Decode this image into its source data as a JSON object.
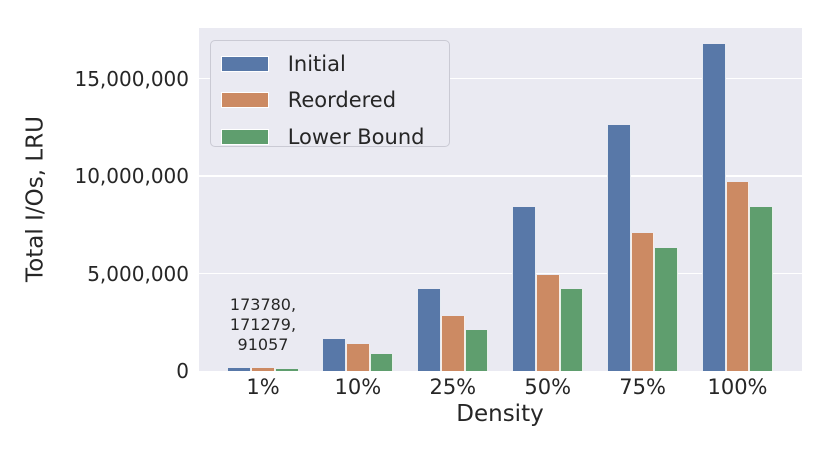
{
  "figure": {
    "background": "#ffffff",
    "axes_background": "#eaeaf2",
    "grid_color": "#ffffff",
    "text_color": "#262626"
  },
  "yaxis": {
    "ticks": [
      {
        "value": 0,
        "label": "0"
      },
      {
        "value": 5000000,
        "label": "5,000,000"
      },
      {
        "value": 10000000,
        "label": "10,000,000"
      },
      {
        "value": 15000000,
        "label": "15,000,000"
      }
    ]
  },
  "annotation": {
    "lines": [
      "173780,",
      "171279,",
      "91057"
    ]
  },
  "chart_data": {
    "type": "bar",
    "categories": [
      "1%",
      "10%",
      "25%",
      "50%",
      "75%",
      "100%"
    ],
    "series": [
      {
        "name": "Initial",
        "color": "#5878a8",
        "values": [
          173780,
          1650000,
          4200000,
          8400000,
          12600000,
          16800000
        ]
      },
      {
        "name": "Reordered",
        "color": "#cc8a63",
        "values": [
          171279,
          1390000,
          2830000,
          4930000,
          7100000,
          9700000
        ]
      },
      {
        "name": "Lower Bound",
        "color": "#5f9e6e",
        "values": [
          91057,
          870000,
          2110000,
          4200000,
          6300000,
          8400000
        ]
      }
    ],
    "title": "",
    "xlabel": "Density",
    "ylabel": "Total I/Os, LRU",
    "ylim": [
      0,
      17600000
    ],
    "grid": "horizontal",
    "legend_position": "upper-left",
    "annotation": {
      "category": "1%",
      "text": "173780, 171279, 91057"
    }
  }
}
